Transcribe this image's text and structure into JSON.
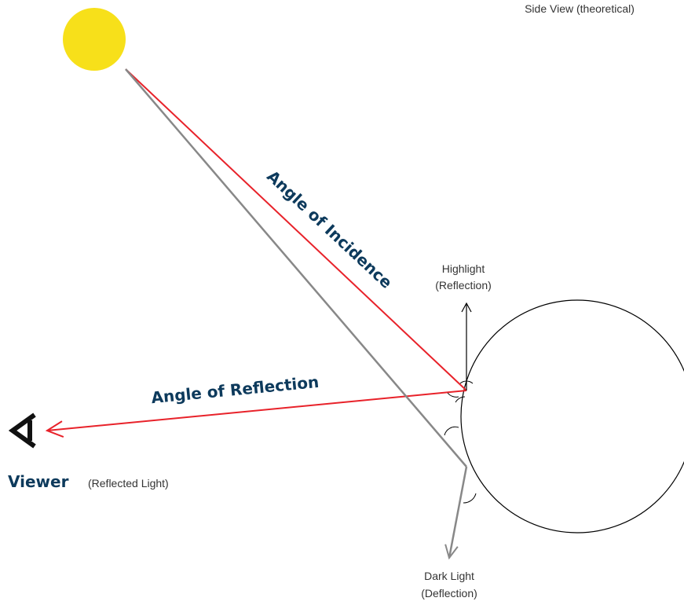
{
  "caption": "Side View (theoretical)",
  "labels": {
    "incidence": "Angle of Incidence",
    "reflection": "Angle of Reflection",
    "highlight": [
      "Highlight",
      "(Reflection)"
    ],
    "viewer": "Viewer",
    "viewer_note": "(Reflected Light)",
    "dark": [
      "Dark Light",
      "(Deflection)"
    ]
  }
}
